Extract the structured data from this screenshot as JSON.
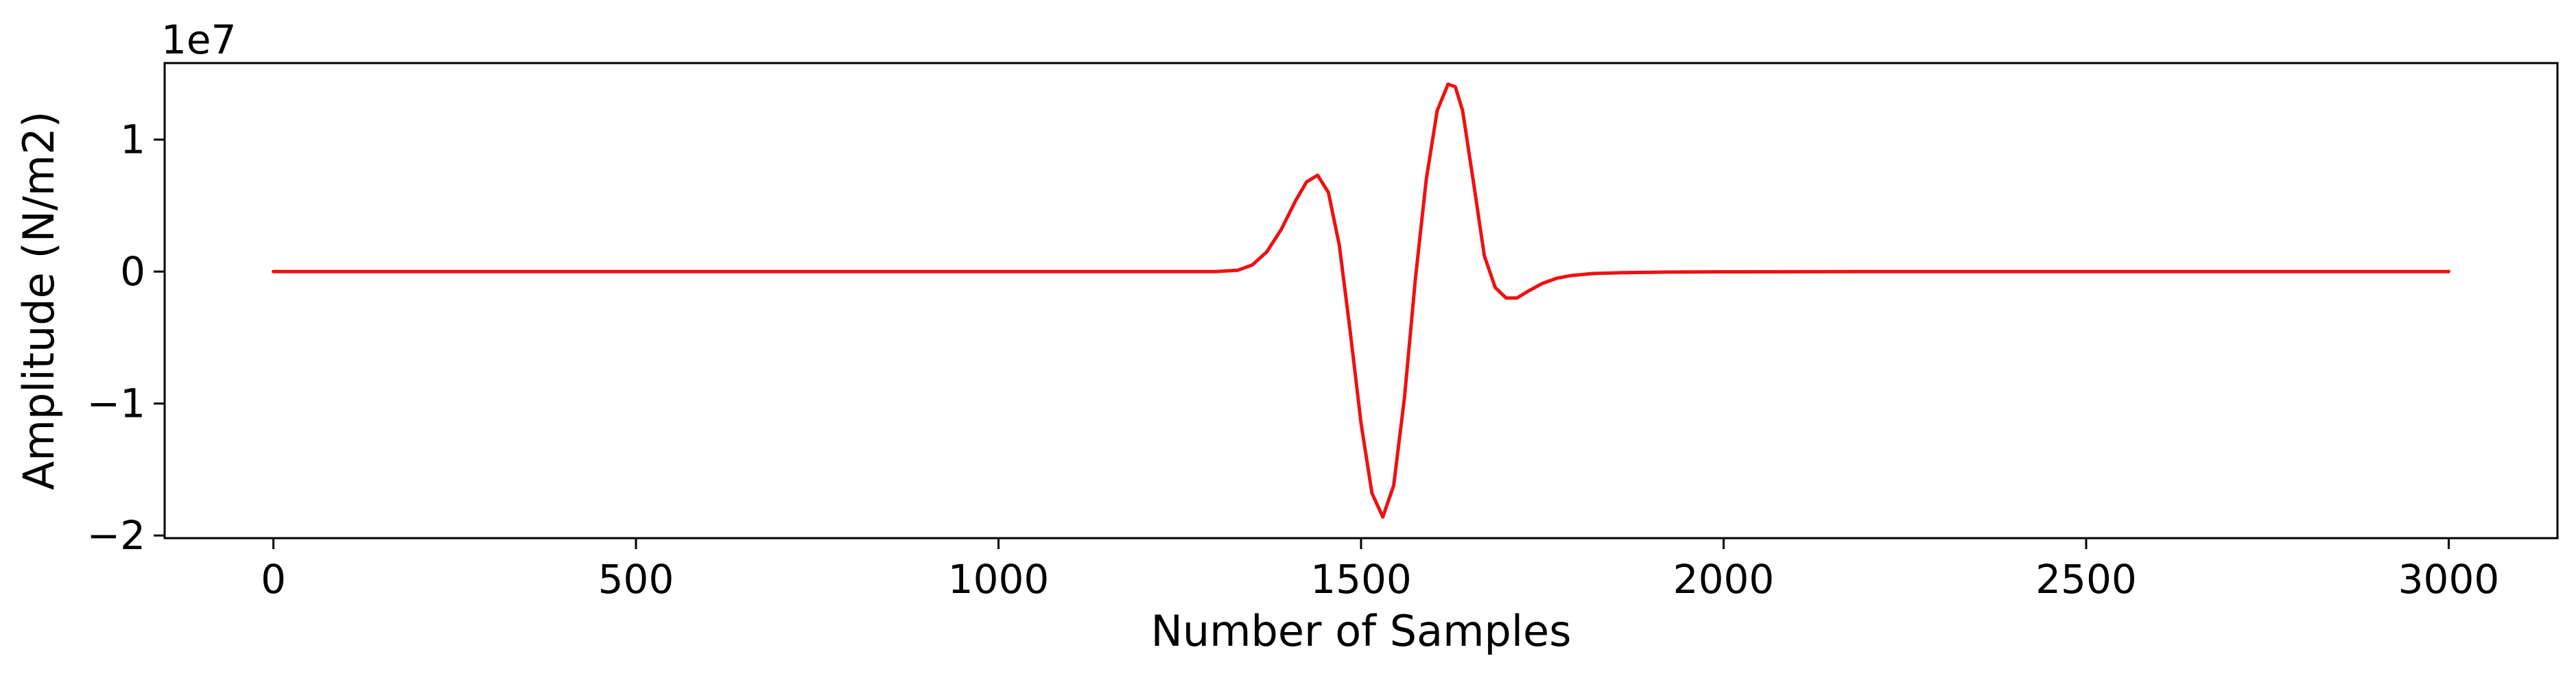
{
  "chart_data": {
    "type": "line",
    "title": "",
    "xlabel": "Number of Samples",
    "ylabel": "Amplitude (N/m2)",
    "y_offset_label": "1e7",
    "xlim": [
      -150,
      3150
    ],
    "ylim": [
      -2.02,
      1.58
    ],
    "y_scale_factor": 10000000,
    "x_ticks": [
      0,
      500,
      1000,
      1500,
      2000,
      2500,
      3000
    ],
    "x_tick_labels": [
      "0",
      "500",
      "1000",
      "1500",
      "2000",
      "2500",
      "3000"
    ],
    "y_ticks": [
      -2,
      -1,
      0,
      1
    ],
    "y_tick_labels": [
      "−2",
      "−1",
      "0",
      "1"
    ],
    "grid": false,
    "legend": "none",
    "series": [
      {
        "color": "#ee1111",
        "x": [
          0,
          1300,
          1330,
          1350,
          1370,
          1390,
          1410,
          1425,
          1440,
          1455,
          1470,
          1485,
          1500,
          1515,
          1530,
          1545,
          1560,
          1575,
          1590,
          1605,
          1620,
          1630,
          1640,
          1655,
          1670,
          1685,
          1700,
          1715,
          1730,
          1750,
          1770,
          1790,
          1820,
          1860,
          1920,
          2000,
          2200,
          3000
        ],
        "values": [
          0,
          0,
          0.01,
          0.05,
          0.15,
          0.32,
          0.54,
          0.68,
          0.73,
          0.6,
          0.2,
          -0.45,
          -1.15,
          -1.68,
          -1.86,
          -1.62,
          -0.95,
          -0.05,
          0.7,
          1.22,
          1.42,
          1.4,
          1.22,
          0.68,
          0.12,
          -0.12,
          -0.2,
          -0.2,
          -0.15,
          -0.09,
          -0.05,
          -0.03,
          -0.015,
          -0.008,
          -0.004,
          -0.002,
          0,
          0
        ]
      }
    ]
  }
}
